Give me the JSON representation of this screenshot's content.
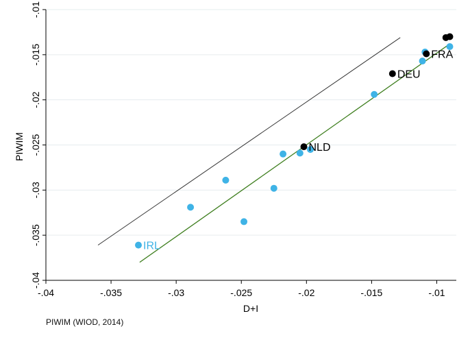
{
  "chart_data": {
    "type": "scatter",
    "title": "",
    "xlabel": "D+I",
    "ylabel": "PIWIM",
    "xlim": [
      -0.04,
      -0.0085
    ],
    "ylim": [
      -0.04,
      -0.01
    ],
    "xticks": [
      -0.04,
      -0.035,
      -0.03,
      -0.025,
      -0.02,
      -0.015,
      -0.01
    ],
    "yticks": [
      -0.01,
      -0.015,
      -0.02,
      -0.025,
      -0.03,
      -0.035,
      -0.04
    ],
    "xtick_labels": [
      "-.04",
      "-.035",
      "-.03",
      "-.025",
      "-.02",
      "-.015",
      "-.01"
    ],
    "ytick_labels": [
      "-.01",
      "-.015",
      "-.02",
      "-.025",
      "-.03",
      "-.035",
      "-.04"
    ],
    "grid": "horizontal",
    "series": [
      {
        "color": "#3fb3e6",
        "points": [
          {
            "x": -0.0329,
            "y": -0.0361,
            "label": "IRL"
          },
          {
            "x": -0.0289,
            "y": -0.0319
          },
          {
            "x": -0.0262,
            "y": -0.0289
          },
          {
            "x": -0.0248,
            "y": -0.0335
          },
          {
            "x": -0.0225,
            "y": -0.0298
          },
          {
            "x": -0.0218,
            "y": -0.026
          },
          {
            "x": -0.0205,
            "y": -0.0259
          },
          {
            "x": -0.0197,
            "y": -0.0255
          },
          {
            "x": -0.0148,
            "y": -0.0194
          },
          {
            "x": -0.0111,
            "y": -0.0157
          },
          {
            "x": -0.0109,
            "y": -0.0147
          },
          {
            "x": -0.009,
            "y": -0.0141
          }
        ]
      },
      {
        "color": "#000000",
        "points": [
          {
            "x": -0.0202,
            "y": -0.0252,
            "label": "NLD"
          },
          {
            "x": -0.0134,
            "y": -0.0171,
            "label": "DEU"
          },
          {
            "x": -0.0108,
            "y": -0.0149,
            "label": "FRA"
          },
          {
            "x": -0.0093,
            "y": -0.0131
          },
          {
            "x": -0.009,
            "y": -0.013
          }
        ]
      }
    ],
    "lines": [
      {
        "kind": "reference",
        "color": "#333333",
        "x": [
          -0.036,
          -0.0128
        ],
        "y": [
          -0.0361,
          -0.0131
        ]
      },
      {
        "kind": "fit",
        "color": "#3f7f1f",
        "x": [
          -0.0328,
          -0.009
        ],
        "y": [
          -0.038,
          -0.0138
        ]
      }
    ]
  },
  "footer": {
    "note": "PIWIM (WIOD, 2014)"
  }
}
